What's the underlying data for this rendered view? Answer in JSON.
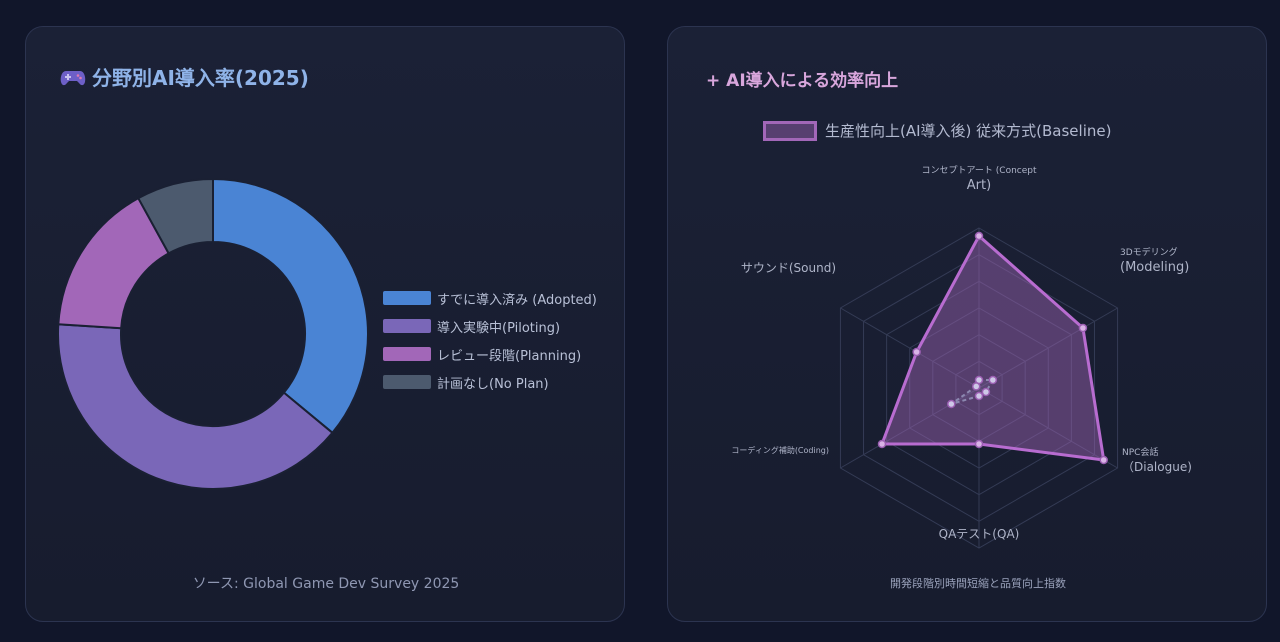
{
  "left_card": {
    "title": "分野別AI導入率(2025)",
    "source": "ソース: Global Game Dev Survey 2025"
  },
  "right_card": {
    "title": "+ AI導入による効率向上",
    "legend_text": "生産性向上(AI導入後) 従来方式(Baseline)",
    "caption": "開発段階別時間短縮と品質向上指数"
  },
  "colors": {
    "adopted": "#4a84d4",
    "piloting": "#7a67b8",
    "planning": "#a267b8",
    "noplan": "#4c5a6e",
    "radar": "#b86cd0"
  },
  "chart_data": [
    {
      "type": "pie",
      "variant": "doughnut",
      "labels": [
        "すでに導入済み (Adopted)",
        "導入実験中(Piloting)",
        "レビュー段階(Planning)",
        "計画なし(No Plan)"
      ],
      "values": [
        36,
        40,
        16,
        8
      ],
      "colors": [
        "#4a84d4",
        "#7a67b8",
        "#a267b8",
        "#4c5a6e"
      ],
      "legend_position": "right"
    },
    {
      "type": "radar",
      "axes": [
        [
          "コンセプトアート (Concept",
          "Art)"
        ],
        [
          "3Dモデリング",
          "(Modeling)"
        ],
        [
          "NPC会話",
          "（Dialogue)"
        ],
        [
          "QAテスト(QA)"
        ],
        [
          "コーディング補助(Coding)"
        ],
        [
          "サウンド(Sound)"
        ]
      ],
      "series": [
        {
          "name": "生産性向上(AI導入後)",
          "values": [
            95,
            75,
            90,
            35,
            70,
            45
          ]
        },
        {
          "name": "従来方式(Baseline)",
          "values": [
            5,
            10,
            5,
            5,
            20,
            2
          ]
        }
      ],
      "rmax": 100,
      "grid": true,
      "legend_position": "top"
    }
  ]
}
